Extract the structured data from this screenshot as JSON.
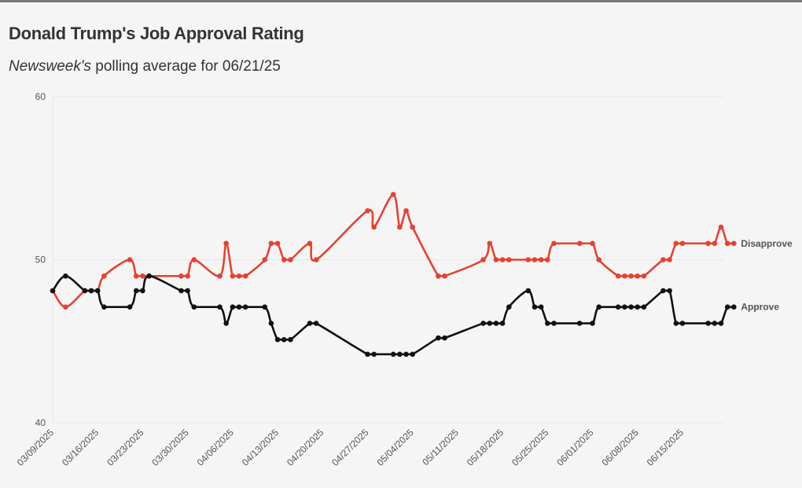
{
  "header": {
    "title": "Donald Trump's Job Approval Rating",
    "subtitle_pub": "Newsweek's",
    "subtitle_rest": " polling average for 06/21/25"
  },
  "chart_data": {
    "type": "line",
    "title": "Donald Trump's Job Approval Rating",
    "subtitle": "Newsweek's polling average for 06/21/25",
    "xlabel": "",
    "ylabel": "",
    "ylim": [
      40,
      60
    ],
    "yticks": [
      40,
      50,
      60
    ],
    "xlim": [
      "2025-03-09",
      "2025-06-21"
    ],
    "xticks": [
      "03/09/2025",
      "03/16/2025",
      "03/23/2025",
      "03/30/2025",
      "04/06/2025",
      "04/13/2025",
      "04/20/2025",
      "04/27/2025",
      "05/04/2025",
      "05/11/2025",
      "05/18/2025",
      "05/25/2025",
      "06/01/2025",
      "06/08/2025",
      "06/15/2025"
    ],
    "grid": "horizontal",
    "legend": "end-of-line labels",
    "series": [
      {
        "name": "Disapprove",
        "color": "#e8412f",
        "points": [
          [
            "2025-03-09",
            48.1
          ],
          [
            "2025-03-11",
            47.1
          ],
          [
            "2025-03-14",
            48.1
          ],
          [
            "2025-03-15",
            48.1
          ],
          [
            "2025-03-16",
            48.1
          ],
          [
            "2025-03-17",
            49.0
          ],
          [
            "2025-03-21",
            50.0
          ],
          [
            "2025-03-22",
            49.0
          ],
          [
            "2025-03-23",
            49.0
          ],
          [
            "2025-03-24",
            49.0
          ],
          [
            "2025-03-29",
            49.0
          ],
          [
            "2025-03-30",
            49.0
          ],
          [
            "2025-03-31",
            50.0
          ],
          [
            "2025-04-04",
            49.0
          ],
          [
            "2025-04-05",
            51.0
          ],
          [
            "2025-04-06",
            49.0
          ],
          [
            "2025-04-07",
            49.0
          ],
          [
            "2025-04-08",
            49.0
          ],
          [
            "2025-04-11",
            50.0
          ],
          [
            "2025-04-12",
            51.0
          ],
          [
            "2025-04-13",
            51.0
          ],
          [
            "2025-04-14",
            50.0
          ],
          [
            "2025-04-15",
            50.0
          ],
          [
            "2025-04-18",
            51.0
          ],
          [
            "2025-04-19",
            50.0
          ],
          [
            "2025-04-27",
            53.0
          ],
          [
            "2025-04-28",
            52.0
          ],
          [
            "2025-05-01",
            54.0
          ],
          [
            "2025-05-02",
            52.0
          ],
          [
            "2025-05-03",
            53.0
          ],
          [
            "2025-05-04",
            52.0
          ],
          [
            "2025-05-08",
            49.0
          ],
          [
            "2025-05-09",
            49.0
          ],
          [
            "2025-05-15",
            50.0
          ],
          [
            "2025-05-16",
            51.0
          ],
          [
            "2025-05-17",
            50.0
          ],
          [
            "2025-05-18",
            50.0
          ],
          [
            "2025-05-19",
            50.0
          ],
          [
            "2025-05-22",
            50.0
          ],
          [
            "2025-05-23",
            50.0
          ],
          [
            "2025-05-24",
            50.0
          ],
          [
            "2025-05-25",
            50.0
          ],
          [
            "2025-05-26",
            51.0
          ],
          [
            "2025-05-30",
            51.0
          ],
          [
            "2025-06-01",
            51.0
          ],
          [
            "2025-06-02",
            50.0
          ],
          [
            "2025-06-05",
            49.0
          ],
          [
            "2025-06-06",
            49.0
          ],
          [
            "2025-06-07",
            49.0
          ],
          [
            "2025-06-08",
            49.0
          ],
          [
            "2025-06-09",
            49.0
          ],
          [
            "2025-06-12",
            50.0
          ],
          [
            "2025-06-13",
            50.0
          ],
          [
            "2025-06-14",
            51.0
          ],
          [
            "2025-06-15",
            51.0
          ],
          [
            "2025-06-19",
            51.0
          ],
          [
            "2025-06-20",
            51.0
          ],
          [
            "2025-06-21",
            52.0
          ],
          [
            "2025-06-22",
            51.0
          ],
          [
            "2025-06-23",
            51.0
          ]
        ]
      },
      {
        "name": "Approve",
        "color": "#111111",
        "points": [
          [
            "2025-03-09",
            48.1
          ],
          [
            "2025-03-11",
            49.0
          ],
          [
            "2025-03-14",
            48.1
          ],
          [
            "2025-03-15",
            48.1
          ],
          [
            "2025-03-16",
            48.1
          ],
          [
            "2025-03-17",
            47.1
          ],
          [
            "2025-03-21",
            47.1
          ],
          [
            "2025-03-22",
            48.1
          ],
          [
            "2025-03-23",
            48.1
          ],
          [
            "2025-03-24",
            49.0
          ],
          [
            "2025-03-29",
            48.1
          ],
          [
            "2025-03-30",
            48.1
          ],
          [
            "2025-03-31",
            47.1
          ],
          [
            "2025-04-04",
            47.1
          ],
          [
            "2025-04-05",
            46.1
          ],
          [
            "2025-04-06",
            47.1
          ],
          [
            "2025-04-07",
            47.1
          ],
          [
            "2025-04-08",
            47.1
          ],
          [
            "2025-04-11",
            47.1
          ],
          [
            "2025-04-12",
            46.1
          ],
          [
            "2025-04-13",
            45.1
          ],
          [
            "2025-04-14",
            45.1
          ],
          [
            "2025-04-15",
            45.1
          ],
          [
            "2025-04-18",
            46.1
          ],
          [
            "2025-04-19",
            46.1
          ],
          [
            "2025-04-27",
            44.2
          ],
          [
            "2025-04-28",
            44.2
          ],
          [
            "2025-05-01",
            44.2
          ],
          [
            "2025-05-02",
            44.2
          ],
          [
            "2025-05-03",
            44.2
          ],
          [
            "2025-05-04",
            44.2
          ],
          [
            "2025-05-08",
            45.2
          ],
          [
            "2025-05-09",
            45.2
          ],
          [
            "2025-05-15",
            46.1
          ],
          [
            "2025-05-16",
            46.1
          ],
          [
            "2025-05-17",
            46.1
          ],
          [
            "2025-05-18",
            46.1
          ],
          [
            "2025-05-19",
            47.1
          ],
          [
            "2025-05-22",
            48.1
          ],
          [
            "2025-05-23",
            47.1
          ],
          [
            "2025-05-24",
            47.1
          ],
          [
            "2025-05-25",
            46.1
          ],
          [
            "2025-05-26",
            46.1
          ],
          [
            "2025-05-30",
            46.1
          ],
          [
            "2025-06-01",
            46.1
          ],
          [
            "2025-06-02",
            47.1
          ],
          [
            "2025-06-05",
            47.1
          ],
          [
            "2025-06-06",
            47.1
          ],
          [
            "2025-06-07",
            47.1
          ],
          [
            "2025-06-08",
            47.1
          ],
          [
            "2025-06-09",
            47.1
          ],
          [
            "2025-06-12",
            48.1
          ],
          [
            "2025-06-13",
            48.1
          ],
          [
            "2025-06-14",
            46.1
          ],
          [
            "2025-06-15",
            46.1
          ],
          [
            "2025-06-19",
            46.1
          ],
          [
            "2025-06-20",
            46.1
          ],
          [
            "2025-06-21",
            46.1
          ],
          [
            "2025-06-22",
            47.1
          ],
          [
            "2025-06-23",
            47.1
          ]
        ]
      }
    ]
  }
}
